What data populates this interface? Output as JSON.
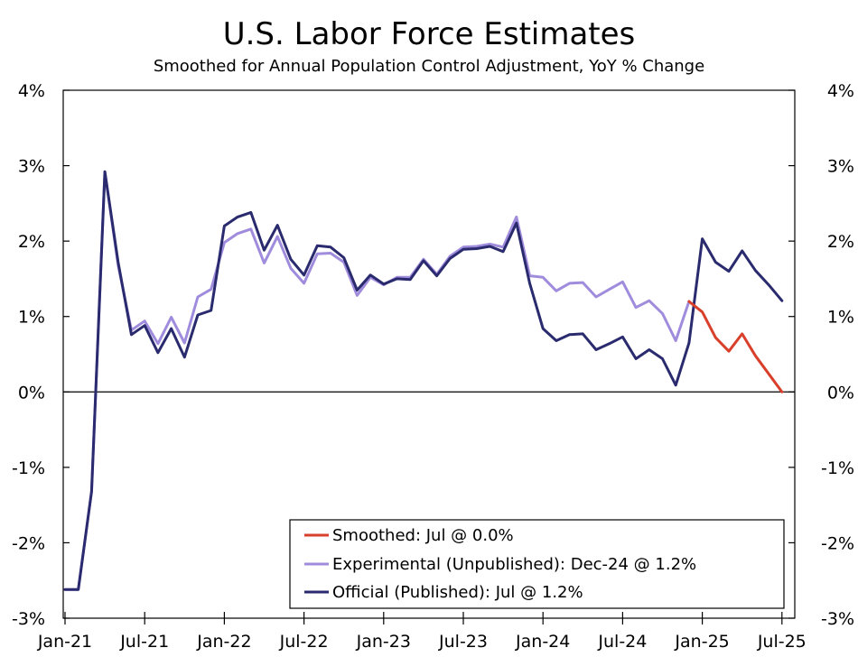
{
  "chart_data": {
    "type": "line",
    "title": "U.S. Labor Force Estimates",
    "subtitle": "Smoothed for Annual Population Control Adjustment, YoY % Change",
    "xlabel": "",
    "ylabel": "",
    "ylim": [
      -3,
      4
    ],
    "y_ticks": [
      -3,
      -2,
      -1,
      0,
      1,
      2,
      3,
      4
    ],
    "y_tick_labels": [
      "-3%",
      "-2%",
      "-1%",
      "0%",
      "1%",
      "2%",
      "3%",
      "4%"
    ],
    "x_tick_labels": [
      "Jan-21",
      "Jul-21",
      "Jan-22",
      "Jul-22",
      "Jan-23",
      "Jul-23",
      "Jan-24",
      "Jul-24",
      "Jan-25",
      "Jul-25"
    ],
    "x_tick_positions": [
      0,
      6,
      12,
      18,
      24,
      30,
      36,
      42,
      48,
      54
    ],
    "x_note": "x values are months since Jan-21",
    "legend_position": "bottom-right",
    "grid": false,
    "series": [
      {
        "name": "Smoothed",
        "legend_label": "Smoothed: Jul @ 0.0%",
        "color": "#d9402b",
        "x": [
          47,
          48,
          49,
          50,
          51,
          52,
          53,
          54
        ],
        "values": [
          1.2,
          1.06,
          0.72,
          0.54,
          0.77,
          0.48,
          0.24,
          0.0
        ]
      },
      {
        "name": "Experimental (Unpublished)",
        "legend_label": "Experimental (Unpublished): Dec-24 @ 1.2%",
        "color": "#a08cdc",
        "x": [
          0,
          1,
          2,
          3,
          4,
          5,
          6,
          7,
          8,
          9,
          10,
          11,
          12,
          13,
          14,
          15,
          16,
          17,
          18,
          19,
          20,
          21,
          22,
          23,
          24,
          25,
          26,
          27,
          28,
          29,
          30,
          31,
          32,
          33,
          34,
          35,
          36,
          37,
          38,
          39,
          40,
          41,
          42,
          43,
          44,
          45,
          46,
          47
        ],
        "values": [
          -2.62,
          -2.62,
          -1.32,
          2.92,
          1.68,
          0.82,
          0.94,
          0.64,
          0.99,
          0.65,
          1.26,
          1.36,
          1.98,
          2.1,
          2.16,
          1.71,
          2.06,
          1.64,
          1.44,
          1.83,
          1.84,
          1.72,
          1.28,
          1.52,
          1.42,
          1.52,
          1.52,
          1.76,
          1.56,
          1.8,
          1.92,
          1.93,
          1.96,
          1.92,
          2.32,
          1.54,
          1.52,
          1.34,
          1.44,
          1.45,
          1.26,
          1.36,
          1.46,
          1.12,
          1.21,
          1.04,
          0.68,
          1.2
        ]
      },
      {
        "name": "Official (Published)",
        "legend_label": "Official (Published): Jul @ 1.2%",
        "color": "#2a2a6e",
        "x": [
          0,
          1,
          2,
          3,
          4,
          5,
          6,
          7,
          8,
          9,
          10,
          11,
          12,
          13,
          14,
          15,
          16,
          17,
          18,
          19,
          20,
          21,
          22,
          23,
          24,
          25,
          26,
          27,
          28,
          29,
          30,
          31,
          32,
          33,
          34,
          35,
          36,
          37,
          38,
          39,
          40,
          41,
          42,
          43,
          44,
          45,
          46,
          47,
          48,
          49,
          50,
          51,
          52,
          53,
          54
        ],
        "values": [
          -2.62,
          -2.62,
          -1.32,
          2.92,
          1.72,
          0.76,
          0.88,
          0.52,
          0.84,
          0.46,
          1.02,
          1.08,
          2.2,
          2.32,
          2.38,
          1.88,
          2.21,
          1.76,
          1.55,
          1.94,
          1.92,
          1.78,
          1.35,
          1.55,
          1.43,
          1.5,
          1.49,
          1.74,
          1.54,
          1.77,
          1.89,
          1.9,
          1.93,
          1.86,
          2.24,
          1.44,
          0.84,
          0.68,
          0.76,
          0.77,
          0.56,
          0.64,
          0.73,
          0.44,
          0.56,
          0.44,
          0.09,
          0.65,
          2.03,
          1.72,
          1.6,
          1.87,
          1.61,
          1.42,
          1.21
        ]
      }
    ]
  }
}
